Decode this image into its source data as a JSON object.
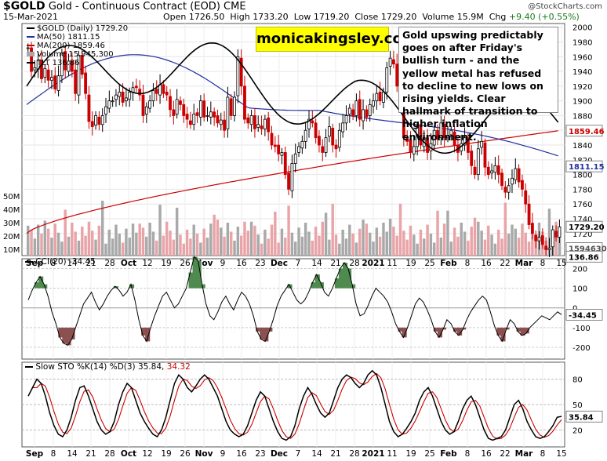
{
  "header": {
    "symbol": "$GOLD",
    "name": "Gold - Continuous Contract (EOD)",
    "exchange": "CME",
    "date": "15-Mar-2021",
    "open_label": "Open",
    "open": "1726.50",
    "high_label": "High",
    "high": "1733.20",
    "low_label": "Low",
    "low": "1719.20",
    "close_label": "Close",
    "close": "1729.20",
    "volume_label": "Volume",
    "volume": "15.9M",
    "chg_label": "Chg",
    "chg": "+9.40 (+0.55%)",
    "credit": "@StockCharts.com"
  },
  "legend": {
    "price": "$GOLD (Daily) 1729.20",
    "ma50": "MA(50) 1811.15",
    "ma200": "MA(200) 1859.46",
    "volume": "Volume 15,945,300",
    "tlt": "TLT 136.86"
  },
  "brand": "monicakingsley.co",
  "annotation": "Gold upswing predictably goes on after Friday's bullish turn - and the yellow metal has refused to decline to new lows on rising yields. Clear hallmark of transition to higher inflation environment.",
  "volume_axis": [
    "50M",
    "40M",
    "30M",
    "20M",
    "10M"
  ],
  "indicator_cci": {
    "label": "CCI(20) -34.45",
    "value_tag": "-34.45"
  },
  "indicator_sto": {
    "label": "Slow STO %K(14) %D(3) 35.84,",
    "d_value": "34.32",
    "value_tag": "35.84"
  },
  "tags": {
    "price": "1729.20",
    "ma50": "1811.15",
    "ma200": "1859.46",
    "volume": "15945300",
    "tlt": "136.86"
  },
  "colors": {
    "up_candle": "#ffffff",
    "down_candle": "#cc0000",
    "ma50": "#1f2f9f",
    "ma200": "#cc0000",
    "volume_up": "#a9a9a9",
    "volume_down": "#e9a4a8",
    "tlt": "#000000",
    "brand_bg": "#ffff00",
    "cci_fill_pos": "#4f8a4f",
    "cci_fill_neg": "#8b5050",
    "sto_d": "#cc0000"
  },
  "chart_data": [
    {
      "type": "candlestick",
      "title": "$GOLD Gold - Continuous Contract (EOD) CME",
      "x_ticks": [
        "Sep",
        "8",
        "14",
        "21",
        "28",
        "Oct",
        "12",
        "19",
        "26",
        "Nov",
        "9",
        "16",
        "23",
        "Dec",
        "7",
        "14",
        "21",
        "28",
        "2021",
        "11",
        "19",
        "25",
        "Feb",
        "8",
        "16",
        "22",
        "Mar",
        "8",
        "15"
      ],
      "y_ticks": [
        1700,
        1720,
        1740,
        1760,
        1780,
        1800,
        1820,
        1840,
        1860,
        1880,
        1900,
        1920,
        1940,
        1960,
        1980,
        2000
      ],
      "ylim": [
        1690,
        2005
      ],
      "close_series": [
        1972,
        1940,
        1945,
        1955,
        1930,
        1944,
        1928,
        1932,
        1916,
        1934,
        1965,
        1942,
        1954,
        1940,
        1910,
        1962,
        1936,
        1910,
        1872,
        1865,
        1880,
        1868,
        1880,
        1892,
        1900,
        1900,
        1908,
        1912,
        1898,
        1904,
        1912,
        1918,
        1918,
        1908,
        1880,
        1892,
        1900,
        1914,
        1910,
        1922,
        1910,
        1908,
        1888,
        1880,
        1902,
        1895,
        1880,
        1875,
        1868,
        1882,
        1880,
        1900,
        1878,
        1880,
        1885,
        1878,
        1870,
        1874,
        1860,
        1905,
        1880,
        1905,
        1960,
        1920,
        1875,
        1870,
        1880,
        1862,
        1868,
        1862,
        1875,
        1858,
        1840,
        1838,
        1828,
        1830,
        1800,
        1780,
        1815,
        1828,
        1838,
        1845,
        1860,
        1875,
        1870,
        1850,
        1840,
        1830,
        1850,
        1865,
        1840,
        1835,
        1860,
        1870,
        1880,
        1890,
        1880,
        1900,
        1875,
        1888,
        1878,
        1895,
        1900,
        1910,
        1900,
        1912,
        1945,
        1958,
        1950,
        1920,
        1900,
        1850,
        1845,
        1830,
        1838,
        1865,
        1840,
        1850,
        1830,
        1842,
        1860,
        1848,
        1870,
        1850,
        1852,
        1860,
        1840,
        1830,
        1842,
        1850,
        1830,
        1812,
        1800,
        1835,
        1845,
        1810,
        1800,
        1805,
        1812,
        1800,
        1785,
        1776,
        1785,
        1795,
        1808,
        1790,
        1780,
        1760,
        1732,
        1720,
        1710,
        1715,
        1705,
        1698,
        1700,
        1725,
        1715,
        1729
      ],
      "ma50_end": 1811.15,
      "ma200_end": 1859.46,
      "tlt_last": 136.86
    },
    {
      "type": "bar",
      "title": "Volume",
      "ylabel": "Volume",
      "ylim": [
        0,
        55
      ],
      "y_ticks": [
        "10M",
        "20M",
        "30M",
        "40M",
        "50M"
      ],
      "last_value": 15945300
    },
    {
      "type": "line",
      "title": "CCI(20)",
      "y_ticks": [
        -200,
        -100,
        0,
        100,
        200
      ],
      "ylim": [
        -260,
        250
      ],
      "last_value": -34.45,
      "values": [
        40,
        90,
        130,
        160,
        120,
        60,
        -20,
        -80,
        -150,
        -180,
        -190,
        -160,
        -100,
        -40,
        20,
        50,
        80,
        30,
        -10,
        20,
        60,
        90,
        110,
        90,
        60,
        80,
        120,
        40,
        -60,
        -140,
        -170,
        -100,
        -40,
        10,
        60,
        80,
        40,
        0,
        20,
        60,
        100,
        180,
        260,
        240,
        120,
        20,
        -40,
        -60,
        -20,
        30,
        60,
        20,
        -10,
        40,
        80,
        60,
        20,
        -40,
        -120,
        -160,
        -170,
        -120,
        -60,
        10,
        60,
        90,
        120,
        80,
        40,
        20,
        40,
        80,
        130,
        170,
        130,
        80,
        60,
        100,
        150,
        200,
        230,
        200,
        120,
        20,
        -40,
        -30,
        10,
        60,
        100,
        80,
        60,
        30,
        -20,
        -80,
        -120,
        -150,
        -100,
        -40,
        20,
        50,
        30,
        -10,
        -60,
        -120,
        -150,
        -110,
        -60,
        -80,
        -120,
        -140,
        -110,
        -60,
        -20,
        10,
        40,
        60,
        40,
        -20,
        -90,
        -140,
        -170,
        -110,
        -60,
        -80,
        -120,
        -140,
        -130,
        -100,
        -80,
        -60,
        -40,
        -50,
        -60,
        -40,
        -20,
        -34
      ]
    },
    {
      "type": "line",
      "title": "Slow STO %K(14) %D(3)",
      "y_ticks": [
        20,
        50,
        80
      ],
      "ylim": [
        0,
        100
      ],
      "k_last": 35.84,
      "d_last": 34.32,
      "k_values": [
        60,
        70,
        80,
        75,
        60,
        40,
        25,
        15,
        12,
        20,
        35,
        55,
        70,
        72,
        60,
        45,
        30,
        20,
        15,
        18,
        30,
        50,
        65,
        75,
        70,
        55,
        40,
        30,
        22,
        15,
        12,
        20,
        35,
        55,
        75,
        85,
        80,
        70,
        65,
        72,
        80,
        85,
        80,
        70,
        60,
        45,
        30,
        20,
        15,
        12,
        15,
        25,
        40,
        55,
        65,
        60,
        45,
        30,
        18,
        10,
        8,
        12,
        25,
        45,
        60,
        70,
        62,
        50,
        40,
        35,
        40,
        55,
        70,
        80,
        85,
        82,
        75,
        70,
        75,
        85,
        90,
        85,
        70,
        50,
        30,
        18,
        12,
        15,
        22,
        30,
        40,
        55,
        65,
        70,
        60,
        45,
        30,
        20,
        15,
        18,
        30,
        45,
        55,
        60,
        50,
        35,
        20,
        10,
        8,
        10,
        12,
        20,
        35,
        50,
        55,
        45,
        30,
        20,
        12,
        10,
        12,
        18,
        25,
        35,
        36
      ]
    }
  ]
}
